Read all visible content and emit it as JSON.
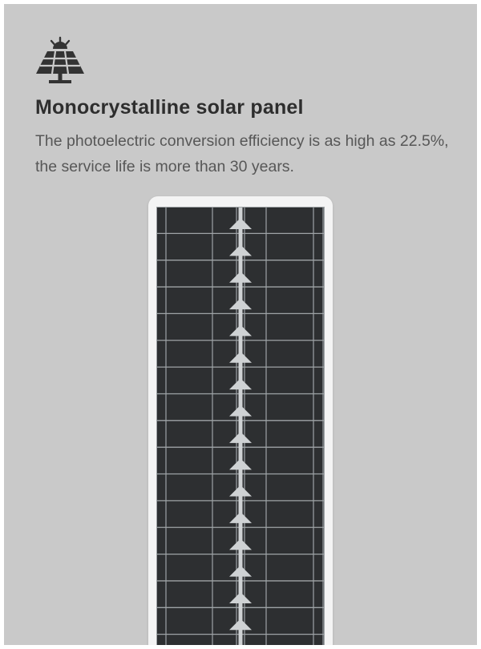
{
  "feature": {
    "icon": "solar-panel-icon",
    "title": "Monocrystalline solar panel",
    "description": "The photoelectric conversion efficiency is as high as 22.5%, the service life is more than 30 years."
  },
  "product_image": {
    "subject": "solar-panel",
    "colors": {
      "frame": "#f4f4f4",
      "cell": "#2d2f31",
      "grid": "#9ea3a6",
      "busbar": "#cfd2d4"
    }
  }
}
